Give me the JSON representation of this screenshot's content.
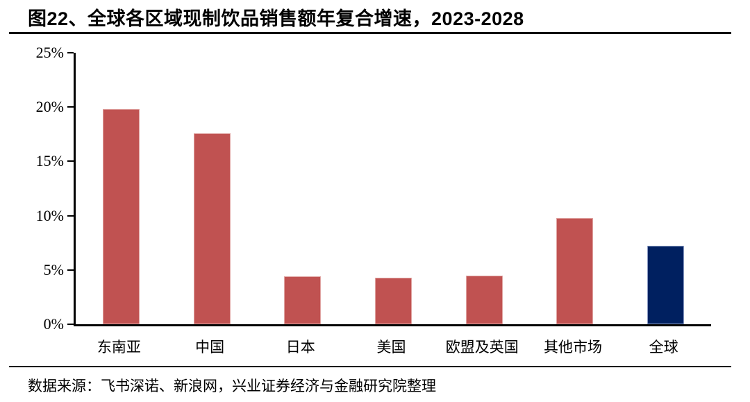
{
  "figure": {
    "title": "图22、全球各区域现制饮品销售额年复合增速，2023-2028",
    "source": "数据来源：飞书深诺、新浪网，兴业证券经济与金融研究院整理"
  },
  "chart_data": {
    "type": "bar",
    "title": "全球各区域现制饮品销售额年复合增速，2023-2028",
    "categories": [
      "东南亚",
      "中国",
      "日本",
      "美国",
      "欧盟及英国",
      "其他市场",
      "全球"
    ],
    "values": [
      19.8,
      17.6,
      4.4,
      4.3,
      4.5,
      9.8,
      7.2
    ],
    "unit": "%",
    "xlabel": "",
    "ylabel": "",
    "ylim": [
      0,
      25
    ],
    "ytick_values": [
      0,
      5,
      10,
      15,
      20,
      25
    ],
    "ytick_labels": [
      "0%",
      "5%",
      "10%",
      "15%",
      "20%",
      "25%"
    ],
    "grid": false,
    "legend": "none",
    "bar_colors": [
      "#C05251",
      "#C05251",
      "#C05251",
      "#C05251",
      "#C05251",
      "#C05251",
      "#002060"
    ],
    "bar_border_colors": [
      "#E0A4A2",
      "#E0A4A2",
      "#E0A4A2",
      "#E0A4A2",
      "#E0A4A2",
      "#E0A4A2",
      "#8A9CC4"
    ]
  },
  "colors": {
    "accent_red": "#C05251",
    "accent_navy": "#002060",
    "axis": "#000000",
    "background": "#FFFFFF"
  }
}
